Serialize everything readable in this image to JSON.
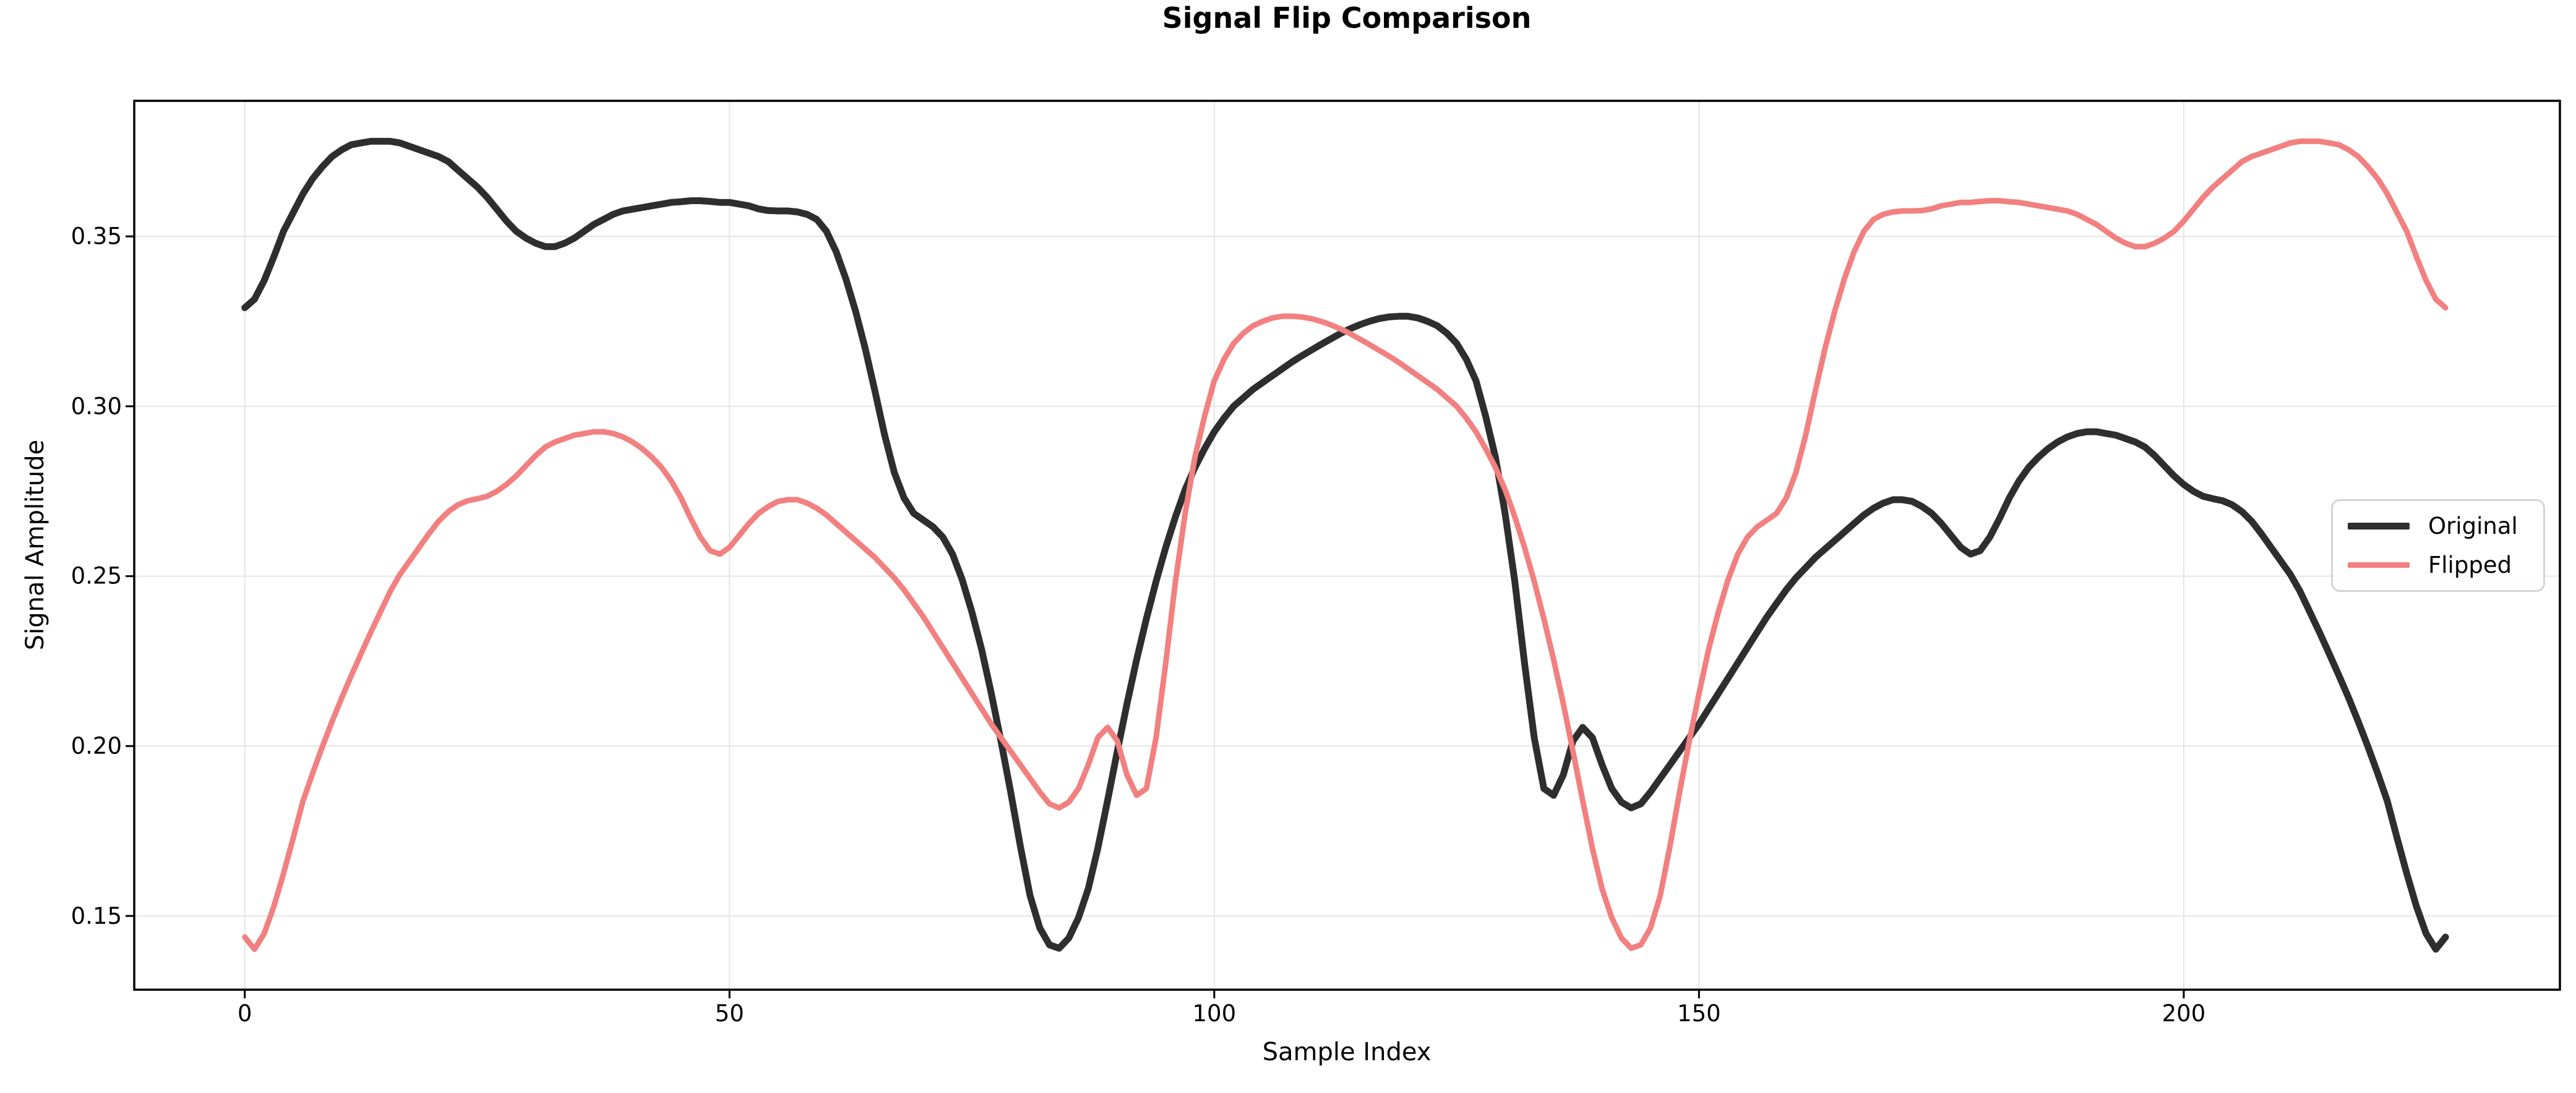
{
  "chart_data": {
    "type": "line",
    "title": "Signal Flip Comparison",
    "xlabel": "Sample Index",
    "ylabel": "Signal Amplitude",
    "grid": true,
    "background_color": "#ffffff",
    "grid_color": "#e5e5e5",
    "spine_color": "#000000",
    "legend_position": "center right",
    "xticks": [
      0,
      50,
      100,
      150,
      200
    ],
    "xtick_labels": [
      "0",
      "50",
      "100",
      "150",
      "200"
    ],
    "yticks": [
      0.15,
      0.2,
      0.25,
      0.3,
      0.35
    ],
    "ytick_labels": [
      "0.15",
      "0.20",
      "0.25",
      "0.30",
      "0.35"
    ],
    "xlim": [
      -11.4,
      238.8
    ],
    "ylim": [
      0.1283,
      0.3899
    ],
    "x_start": 0,
    "x_step": 1,
    "n_points": 228,
    "series": [
      {
        "name": "Original",
        "color": "#2e2e2e",
        "linewidth": 11,
        "values": [
          0.329,
          0.3315,
          0.337,
          0.344,
          0.3515,
          0.357,
          0.3625,
          0.367,
          0.3705,
          0.3735,
          0.3755,
          0.377,
          0.3775,
          0.378,
          0.378,
          0.378,
          0.3775,
          0.3765,
          0.3755,
          0.3745,
          0.3735,
          0.372,
          0.3695,
          0.367,
          0.3645,
          0.3615,
          0.358,
          0.3545,
          0.3515,
          0.3495,
          0.348,
          0.347,
          0.347,
          0.348,
          0.3495,
          0.3515,
          0.3535,
          0.355,
          0.3565,
          0.3575,
          0.358,
          0.3585,
          0.359,
          0.3595,
          0.36,
          0.3602,
          0.3605,
          0.3605,
          0.3603,
          0.36,
          0.36,
          0.3595,
          0.359,
          0.3581,
          0.3576,
          0.3575,
          0.3575,
          0.3572,
          0.3565,
          0.355,
          0.3515,
          0.3455,
          0.3375,
          0.328,
          0.317,
          0.3045,
          0.2915,
          0.2805,
          0.273,
          0.2685,
          0.2665,
          0.2645,
          0.2615,
          0.2565,
          0.249,
          0.2395,
          0.2285,
          0.2155,
          0.2015,
          0.1865,
          0.1705,
          0.156,
          0.1465,
          0.1415,
          0.1405,
          0.1435,
          0.1495,
          0.158,
          0.17,
          0.184,
          0.1985,
          0.2125,
          0.2255,
          0.2375,
          0.2485,
          0.2585,
          0.2675,
          0.2755,
          0.282,
          0.2875,
          0.2925,
          0.2965,
          0.3,
          0.3025,
          0.305,
          0.307,
          0.309,
          0.311,
          0.313,
          0.3148,
          0.3165,
          0.3182,
          0.3198,
          0.3214,
          0.3228,
          0.324,
          0.325,
          0.3258,
          0.3263,
          0.3265,
          0.3265,
          0.326,
          0.325,
          0.3237,
          0.3215,
          0.3185,
          0.3138,
          0.3075,
          0.297,
          0.285,
          0.2685,
          0.2485,
          0.2245,
          0.2025,
          0.1875,
          0.1855,
          0.1915,
          0.2015,
          0.2055,
          0.2025,
          0.1945,
          0.1875,
          0.1835,
          0.1818,
          0.183,
          0.1865,
          0.1905,
          0.1945,
          0.1985,
          0.2025,
          0.2065,
          0.211,
          0.2155,
          0.22,
          0.2245,
          0.229,
          0.2335,
          0.238,
          0.242,
          0.246,
          0.2495,
          0.2525,
          0.2555,
          0.258,
          0.2605,
          0.263,
          0.2655,
          0.268,
          0.27,
          0.2715,
          0.2725,
          0.2725,
          0.272,
          0.2705,
          0.2685,
          0.2655,
          0.262,
          0.2585,
          0.2565,
          0.2575,
          0.2615,
          0.267,
          0.273,
          0.278,
          0.282,
          0.285,
          0.2875,
          0.2895,
          0.291,
          0.292,
          0.2925,
          0.2925,
          0.292,
          0.2915,
          0.2905,
          0.2895,
          0.288,
          0.2855,
          0.2825,
          0.2795,
          0.277,
          0.275,
          0.2735,
          0.2728,
          0.2722,
          0.271,
          0.269,
          0.2662,
          0.2625,
          0.2585,
          0.2545,
          0.2505,
          0.2455,
          0.2395,
          0.2335,
          0.2272,
          0.2208,
          0.2142,
          0.2072,
          0.1998,
          0.192,
          0.1838,
          0.173,
          0.1625,
          0.1528,
          0.1448,
          0.1402,
          0.1438
        ]
      },
      {
        "name": "Flipped",
        "color": "#f28080",
        "linewidth": 9,
        "values": [
          0.1438,
          0.1402,
          0.1448,
          0.1528,
          0.1625,
          0.173,
          0.1838,
          0.192,
          0.1998,
          0.2072,
          0.2142,
          0.2208,
          0.2272,
          0.2335,
          0.2395,
          0.2455,
          0.2505,
          0.2545,
          0.2585,
          0.2625,
          0.2662,
          0.269,
          0.271,
          0.2722,
          0.2728,
          0.2735,
          0.275,
          0.277,
          0.2795,
          0.2825,
          0.2855,
          0.288,
          0.2895,
          0.2905,
          0.2915,
          0.292,
          0.2925,
          0.2925,
          0.292,
          0.291,
          0.2895,
          0.2875,
          0.285,
          0.282,
          0.278,
          0.273,
          0.267,
          0.2615,
          0.2575,
          0.2565,
          0.2585,
          0.262,
          0.2655,
          0.2685,
          0.2705,
          0.272,
          0.2725,
          0.2725,
          0.2715,
          0.27,
          0.268,
          0.2655,
          0.263,
          0.2605,
          0.258,
          0.2555,
          0.2525,
          0.2495,
          0.246,
          0.242,
          0.238,
          0.2335,
          0.229,
          0.2245,
          0.22,
          0.2155,
          0.211,
          0.2065,
          0.2025,
          0.1985,
          0.1945,
          0.1905,
          0.1865,
          0.183,
          0.1818,
          0.1835,
          0.1875,
          0.1945,
          0.2025,
          0.2055,
          0.2015,
          0.1915,
          0.1855,
          0.1875,
          0.2025,
          0.2245,
          0.2485,
          0.2685,
          0.285,
          0.297,
          0.3075,
          0.3138,
          0.3185,
          0.3215,
          0.3237,
          0.325,
          0.326,
          0.3265,
          0.3265,
          0.3263,
          0.3258,
          0.325,
          0.324,
          0.3228,
          0.3214,
          0.3198,
          0.3182,
          0.3165,
          0.3148,
          0.313,
          0.311,
          0.309,
          0.307,
          0.305,
          0.3025,
          0.3,
          0.2965,
          0.2925,
          0.2875,
          0.282,
          0.2755,
          0.2675,
          0.2585,
          0.2485,
          0.2375,
          0.2255,
          0.2125,
          0.1985,
          0.184,
          0.17,
          0.158,
          0.1495,
          0.1435,
          0.1405,
          0.1415,
          0.1465,
          0.156,
          0.1705,
          0.1865,
          0.2015,
          0.2155,
          0.2285,
          0.2395,
          0.249,
          0.2565,
          0.2615,
          0.2645,
          0.2665,
          0.2685,
          0.273,
          0.2805,
          0.2915,
          0.3045,
          0.317,
          0.328,
          0.3375,
          0.3455,
          0.3515,
          0.355,
          0.3565,
          0.3572,
          0.3575,
          0.3575,
          0.3576,
          0.3581,
          0.359,
          0.3595,
          0.36,
          0.36,
          0.3603,
          0.3605,
          0.3605,
          0.3602,
          0.36,
          0.3595,
          0.359,
          0.3585,
          0.358,
          0.3575,
          0.3565,
          0.355,
          0.3535,
          0.3515,
          0.3495,
          0.348,
          0.347,
          0.347,
          0.348,
          0.3495,
          0.3515,
          0.3545,
          0.358,
          0.3615,
          0.3645,
          0.367,
          0.3695,
          0.372,
          0.3735,
          0.3745,
          0.3755,
          0.3765,
          0.3775,
          0.378,
          0.378,
          0.378,
          0.3775,
          0.377,
          0.3755,
          0.3735,
          0.3705,
          0.367,
          0.3625,
          0.357,
          0.3515,
          0.344,
          0.337,
          0.3315,
          0.329
        ]
      }
    ]
  }
}
